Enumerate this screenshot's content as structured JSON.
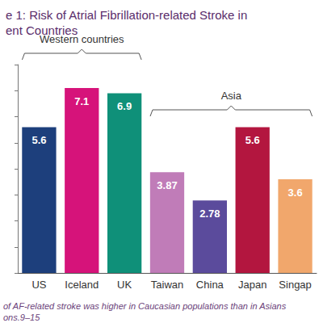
{
  "chart_data": {
    "type": "bar",
    "title": "e 1: Risk of Atrial Fibrillation-related Stroke in\nent Countries",
    "caption": "of AF-related stroke was higher in Caucasian populations than in Asians\nons.9–15",
    "categories": [
      "US",
      "Iceland",
      "UK",
      "Taiwan",
      "China",
      "Japan",
      "Singap"
    ],
    "values": [
      5.6,
      7.1,
      6.9,
      3.87,
      2.78,
      5.6,
      3.6
    ],
    "colors": [
      "#1d3f7c",
      "#d6137a",
      "#0f9079",
      "#c07cb8",
      "#5b4b9c",
      "#b3163f",
      "#f1a76c"
    ],
    "ylim": [
      0,
      8
    ],
    "yticks": [
      0,
      1,
      2,
      3,
      4,
      5,
      6,
      7,
      8
    ],
    "grid": false,
    "tick_labels": "x",
    "data_labels": true,
    "annotations": [
      {
        "text": "Western countries",
        "from": "US",
        "to": "UK"
      },
      {
        "text": "Asia",
        "from": "Taiwan",
        "to": "Singap"
      }
    ]
  }
}
